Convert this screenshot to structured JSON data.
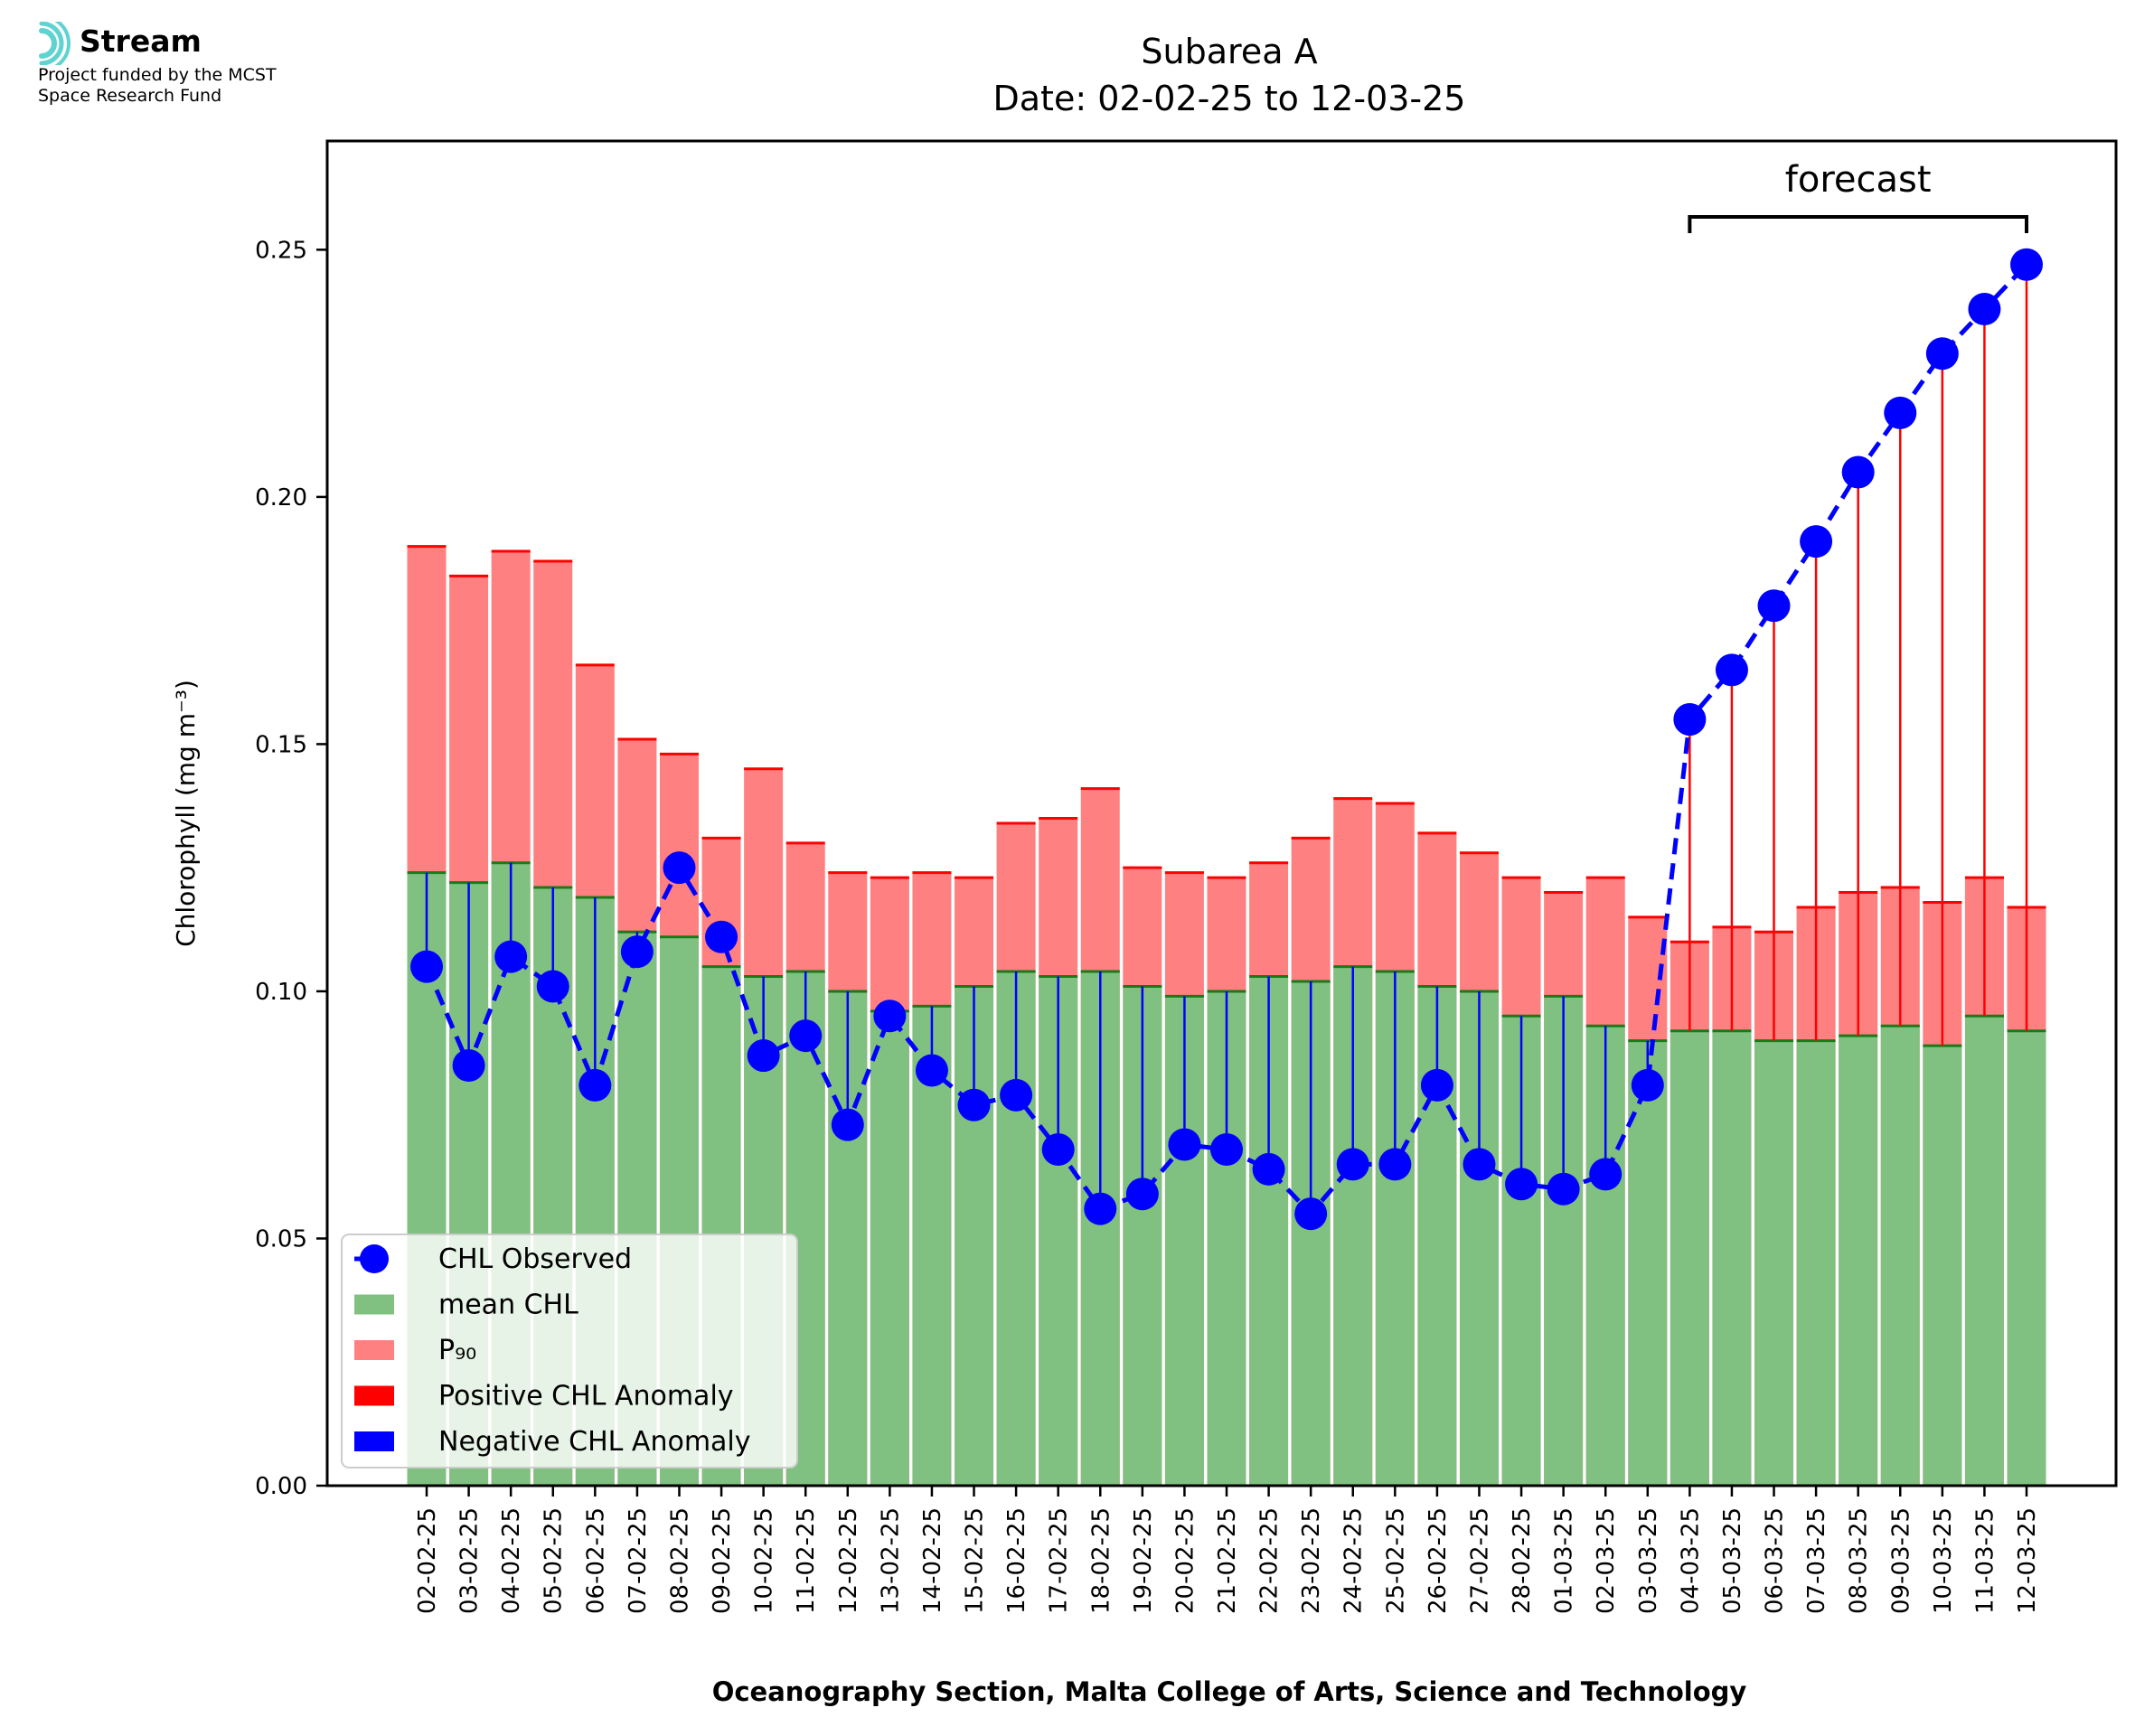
{
  "logo": {
    "brand": "Stream",
    "line1": "Project funded by the MCST",
    "line2": "Space Research Fund",
    "icon": "stream-waves-icon",
    "color": "#5fd3cf"
  },
  "chart_data": {
    "type": "bar",
    "title": "Subarea A",
    "subtitle": "Date: 02-02-25 to 12-03-25",
    "xlabel": "Oceanography Section, Malta College of Arts, Science and Technology",
    "ylabel": "Chlorophyll (mg m⁻³)",
    "ylim": [
      0,
      0.272
    ],
    "yticks": [
      "0.00",
      "0.05",
      "0.10",
      "0.15",
      "0.20",
      "0.25"
    ],
    "ytick_values": [
      0,
      0.05,
      0.1,
      0.15,
      0.2,
      0.25
    ],
    "categories": [
      "02-02-25",
      "03-02-25",
      "04-02-25",
      "05-02-25",
      "06-02-25",
      "07-02-25",
      "08-02-25",
      "09-02-25",
      "10-02-25",
      "11-02-25",
      "12-02-25",
      "13-02-25",
      "14-02-25",
      "15-02-25",
      "16-02-25",
      "17-02-25",
      "18-02-25",
      "19-02-25",
      "20-02-25",
      "21-02-25",
      "22-02-25",
      "23-02-25",
      "24-02-25",
      "25-02-25",
      "26-02-25",
      "27-02-25",
      "28-02-25",
      "01-03-25",
      "02-03-25",
      "03-03-25",
      "04-03-25",
      "05-03-25",
      "06-03-25",
      "07-03-25",
      "08-03-25",
      "09-03-25",
      "10-03-25",
      "11-03-25",
      "12-03-25"
    ],
    "series": [
      {
        "name": "CHL Observed",
        "type": "line",
        "color": "#0000ff",
        "values": [
          0.105,
          0.085,
          0.107,
          0.101,
          0.081,
          0.108,
          0.125,
          0.111,
          0.087,
          0.091,
          0.073,
          0.095,
          0.084,
          0.077,
          0.079,
          0.068,
          0.056,
          0.059,
          0.069,
          0.068,
          0.064,
          0.055,
          0.065,
          0.065,
          0.081,
          0.065,
          0.061,
          0.06,
          0.063,
          0.081,
          0.155,
          0.165,
          0.178,
          0.191,
          0.205,
          0.217,
          0.229,
          0.238,
          0.247
        ]
      },
      {
        "name": "mean CHL",
        "type": "bar",
        "color": "#80c080",
        "values": [
          0.124,
          0.122,
          0.126,
          0.121,
          0.119,
          0.112,
          0.111,
          0.105,
          0.103,
          0.104,
          0.1,
          0.096,
          0.097,
          0.101,
          0.104,
          0.103,
          0.104,
          0.101,
          0.099,
          0.1,
          0.103,
          0.102,
          0.105,
          0.104,
          0.101,
          0.1,
          0.095,
          0.099,
          0.093,
          0.09,
          0.092,
          0.092,
          0.09,
          0.09,
          0.091,
          0.093,
          0.089,
          0.095,
          0.092
        ]
      },
      {
        "name": "P₉₀",
        "type": "bar",
        "color": "#ff8080",
        "values": [
          0.19,
          0.184,
          0.189,
          0.187,
          0.166,
          0.151,
          0.148,
          0.131,
          0.145,
          0.13,
          0.124,
          0.123,
          0.124,
          0.123,
          0.134,
          0.135,
          0.141,
          0.125,
          0.124,
          0.123,
          0.126,
          0.131,
          0.139,
          0.138,
          0.132,
          0.128,
          0.123,
          0.12,
          0.123,
          0.115,
          0.11,
          0.113,
          0.112,
          0.117,
          0.12,
          0.121,
          0.118,
          0.123,
          0.117
        ]
      }
    ],
    "legend": {
      "placement": "lower-left",
      "entries": [
        "CHL Observed",
        "mean CHL",
        "P₉₀",
        "Positive CHL Anomaly",
        "Negative CHL Anomaly"
      ],
      "colors": [
        "#0000ff",
        "#80c080",
        "#ff8080",
        "#ff0000",
        "#0000ff"
      ]
    },
    "forecast": {
      "label": "forecast",
      "start": "04-03-25",
      "end": "12-03-25"
    },
    "anomaly_colors": {
      "positive": "#ff0000",
      "negative": "#0000ff"
    },
    "grid": false
  }
}
